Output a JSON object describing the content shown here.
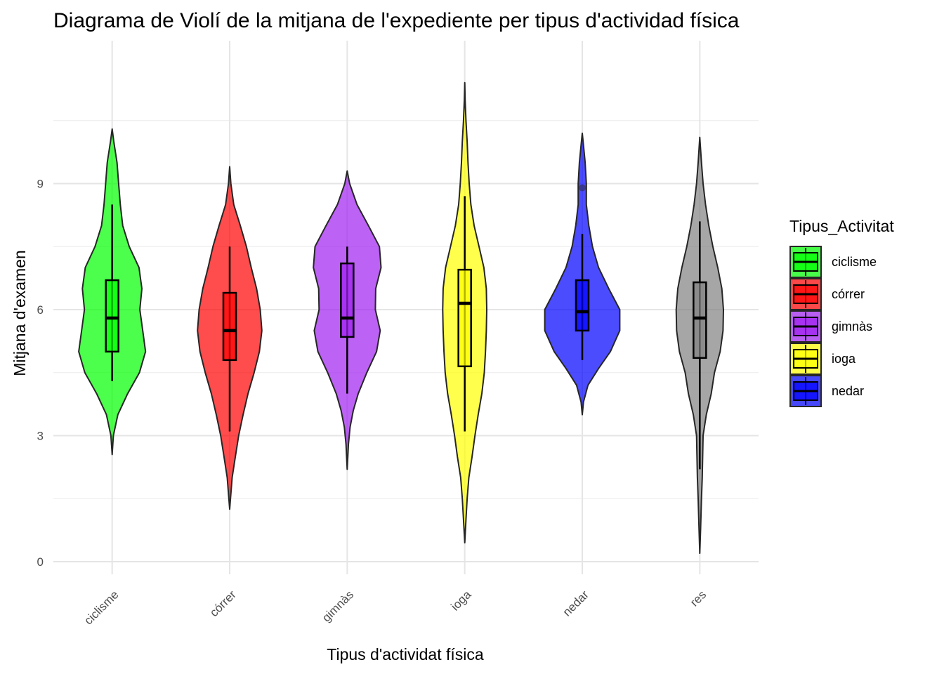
{
  "chart_data": {
    "type": "violin",
    "title": "Diagrama de Violí de la mitjana de l'expediente per tipus d'actividad física",
    "xlabel": "Tipus d'actividat física",
    "ylabel": "Mitjana d'examen",
    "ylim": [
      -0.3,
      12.4
    ],
    "yticks": [
      0,
      3,
      6,
      9
    ],
    "grid": true,
    "categories": [
      "ciclisme",
      "córrer",
      "gimnàs",
      "ioga",
      "nedar",
      "res"
    ],
    "legend": {
      "title": "Tipus_Activitat",
      "position": "right",
      "entries": [
        "ciclisme",
        "córrer",
        "gimnàs",
        "ioga",
        "nedar"
      ]
    },
    "series": [
      {
        "category": "ciclisme",
        "color": "#00ff00",
        "min": 2.55,
        "max": 10.3,
        "box": {
          "whisker_low": 4.3,
          "q1": 5.0,
          "median": 5.8,
          "q3": 6.7,
          "whisker_high": 8.5
        },
        "outliers": [],
        "density": [
          [
            2.55,
            0.0
          ],
          [
            3.0,
            0.03
          ],
          [
            3.5,
            0.14
          ],
          [
            4.0,
            0.38
          ],
          [
            4.5,
            0.67
          ],
          [
            5.0,
            0.82
          ],
          [
            5.5,
            0.75
          ],
          [
            6.0,
            0.68
          ],
          [
            6.5,
            0.73
          ],
          [
            7.0,
            0.66
          ],
          [
            7.5,
            0.42
          ],
          [
            8.0,
            0.26
          ],
          [
            8.5,
            0.2
          ],
          [
            9.0,
            0.16
          ],
          [
            9.5,
            0.12
          ],
          [
            10.0,
            0.04
          ],
          [
            10.3,
            0.0
          ]
        ]
      },
      {
        "category": "córrer",
        "color": "#ff0000",
        "min": 1.25,
        "max": 9.4,
        "box": {
          "whisker_low": 3.1,
          "q1": 4.8,
          "median": 5.5,
          "q3": 6.4,
          "whisker_high": 7.5
        },
        "outliers": [],
        "density": [
          [
            1.25,
            0.0
          ],
          [
            2.0,
            0.06
          ],
          [
            2.5,
            0.14
          ],
          [
            3.0,
            0.22
          ],
          [
            3.5,
            0.33
          ],
          [
            4.0,
            0.45
          ],
          [
            4.5,
            0.6
          ],
          [
            5.0,
            0.73
          ],
          [
            5.5,
            0.79
          ],
          [
            6.0,
            0.75
          ],
          [
            6.5,
            0.66
          ],
          [
            7.0,
            0.53
          ],
          [
            7.5,
            0.41
          ],
          [
            8.0,
            0.26
          ],
          [
            8.5,
            0.1
          ],
          [
            9.0,
            0.03
          ],
          [
            9.4,
            0.0
          ]
        ]
      },
      {
        "category": "gimnàs",
        "color": "#a020f0",
        "min": 2.2,
        "max": 9.3,
        "box": {
          "whisker_low": 4.0,
          "q1": 5.35,
          "median": 5.8,
          "q3": 7.1,
          "whisker_high": 7.5
        },
        "outliers": [],
        "density": [
          [
            2.2,
            0.0
          ],
          [
            2.8,
            0.03
          ],
          [
            3.2,
            0.07
          ],
          [
            3.6,
            0.15
          ],
          [
            4.0,
            0.27
          ],
          [
            4.5,
            0.48
          ],
          [
            5.0,
            0.72
          ],
          [
            5.5,
            0.81
          ],
          [
            6.0,
            0.69
          ],
          [
            6.5,
            0.7
          ],
          [
            7.0,
            0.83
          ],
          [
            7.5,
            0.79
          ],
          [
            8.0,
            0.52
          ],
          [
            8.5,
            0.24
          ],
          [
            9.0,
            0.06
          ],
          [
            9.3,
            0.0
          ]
        ]
      },
      {
        "category": "ioga",
        "color": "#ffff00",
        "min": 0.45,
        "max": 11.4,
        "box": {
          "whisker_low": 3.1,
          "q1": 4.65,
          "median": 6.15,
          "q3": 6.95,
          "whisker_high": 8.7
        },
        "outliers": [],
        "density": [
          [
            0.45,
            0.0
          ],
          [
            1.0,
            0.03
          ],
          [
            1.5,
            0.06
          ],
          [
            2.0,
            0.1
          ],
          [
            2.5,
            0.18
          ],
          [
            3.0,
            0.25
          ],
          [
            3.5,
            0.33
          ],
          [
            4.0,
            0.42
          ],
          [
            4.5,
            0.48
          ],
          [
            5.0,
            0.51
          ],
          [
            5.5,
            0.53
          ],
          [
            6.0,
            0.54
          ],
          [
            6.5,
            0.53
          ],
          [
            7.0,
            0.47
          ],
          [
            7.5,
            0.35
          ],
          [
            8.0,
            0.23
          ],
          [
            8.5,
            0.15
          ],
          [
            9.0,
            0.11
          ],
          [
            9.5,
            0.08
          ],
          [
            10.0,
            0.06
          ],
          [
            10.5,
            0.03
          ],
          [
            11.0,
            0.01
          ],
          [
            11.4,
            0.0
          ]
        ]
      },
      {
        "category": "nedar",
        "color": "#0000ff",
        "min": 3.5,
        "max": 10.2,
        "box": {
          "whisker_low": 4.8,
          "q1": 5.5,
          "median": 5.95,
          "q3": 6.7,
          "whisker_high": 7.8
        },
        "outliers": [
          8.9
        ],
        "density": [
          [
            3.5,
            0.0
          ],
          [
            3.8,
            0.03
          ],
          [
            4.2,
            0.14
          ],
          [
            4.6,
            0.4
          ],
          [
            5.0,
            0.69
          ],
          [
            5.5,
            0.92
          ],
          [
            6.0,
            0.92
          ],
          [
            6.5,
            0.65
          ],
          [
            7.0,
            0.4
          ],
          [
            7.5,
            0.25
          ],
          [
            8.0,
            0.16
          ],
          [
            8.5,
            0.1
          ],
          [
            9.0,
            0.1
          ],
          [
            9.5,
            0.07
          ],
          [
            10.0,
            0.02
          ],
          [
            10.2,
            0.0
          ]
        ]
      },
      {
        "category": "res",
        "color": "#808080",
        "min": 0.2,
        "max": 10.1,
        "box": {
          "whisker_low": 2.2,
          "q1": 4.85,
          "median": 5.8,
          "q3": 6.65,
          "whisker_high": 8.1
        },
        "outliers": [],
        "density": [
          [
            0.2,
            0.0
          ],
          [
            0.8,
            0.02
          ],
          [
            1.5,
            0.04
          ],
          [
            2.0,
            0.06
          ],
          [
            2.5,
            0.07
          ],
          [
            3.0,
            0.08
          ],
          [
            3.5,
            0.16
          ],
          [
            4.0,
            0.28
          ],
          [
            4.5,
            0.36
          ],
          [
            5.0,
            0.5
          ],
          [
            5.5,
            0.57
          ],
          [
            6.0,
            0.58
          ],
          [
            6.5,
            0.54
          ],
          [
            7.0,
            0.44
          ],
          [
            7.5,
            0.32
          ],
          [
            8.0,
            0.22
          ],
          [
            8.5,
            0.14
          ],
          [
            9.0,
            0.08
          ],
          [
            9.5,
            0.04
          ],
          [
            10.1,
            0.0
          ]
        ]
      }
    ]
  }
}
